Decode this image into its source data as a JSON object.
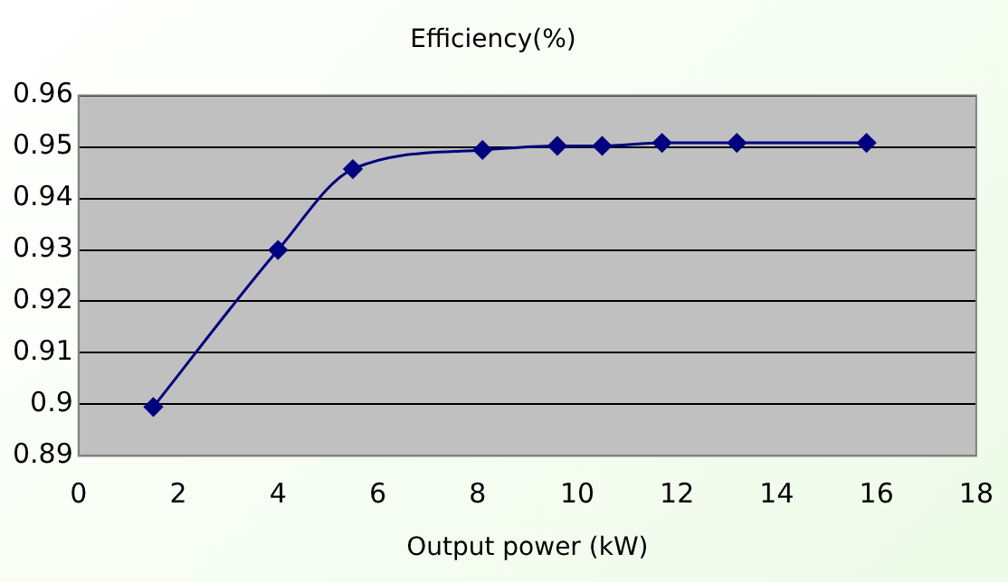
{
  "chart_data": {
    "type": "line",
    "title": "Efficiency(%)",
    "xlabel": "Output power (kW)",
    "x": [
      1.5,
      4,
      5.5,
      8.1,
      9.6,
      10.5,
      11.7,
      13.2,
      15.8
    ],
    "series": [
      {
        "color": "#000080",
        "values": [
          0.8995,
          0.93,
          0.9457,
          0.9494,
          0.9502,
          0.9502,
          0.9508,
          0.9508,
          0.9508
        ]
      }
    ],
    "xlim": [
      0,
      18
    ],
    "xticks": [
      0,
      2,
      4,
      6,
      8,
      10,
      12,
      14,
      16,
      18
    ],
    "ylim": [
      0.89,
      0.96
    ],
    "yticks": [
      0.89,
      0.9,
      0.91,
      0.92,
      0.93,
      0.94,
      0.95,
      0.96
    ],
    "grid": "y",
    "legend": false,
    "marker": "diamond",
    "line_style": "solid"
  }
}
